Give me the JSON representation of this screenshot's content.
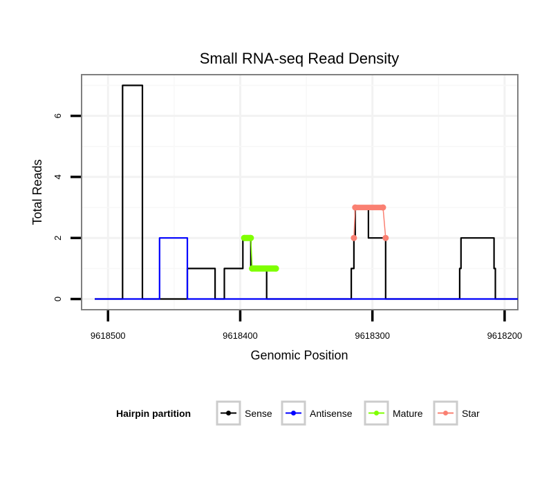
{
  "chart_data": {
    "type": "line",
    "title": "Small RNA-seq Read Density",
    "xlabel": "Genomic Position",
    "ylabel": "Total Reads",
    "xlim": [
      9618520,
      9618190
    ],
    "ylim": [
      -0.35,
      7.35
    ],
    "x_reversed": true,
    "x_ticks": [
      9618500,
      9618400,
      9618300,
      9618200
    ],
    "y_ticks": [
      0,
      2,
      4,
      6
    ],
    "legend": {
      "title": "Hairpin partition",
      "position": "bottom",
      "entries": [
        {
          "name": "Sense",
          "color": "#000000"
        },
        {
          "name": "Antisense",
          "color": "#0000ff"
        },
        {
          "name": "Mature",
          "color": "#7fff00"
        },
        {
          "name": "Star",
          "color": "#fa8072"
        }
      ]
    },
    "series": [
      {
        "name": "Sense",
        "color": "#000000",
        "x": [
          9618510,
          9618489,
          9618489,
          9618474,
          9618474,
          9618440,
          9618440,
          9618419,
          9618419,
          9618412,
          9618412,
          9618398,
          9618398,
          9618392,
          9618392,
          9618380,
          9618380,
          9618370,
          9618370,
          9618355,
          9618355,
          9618337,
          9618337,
          9618316,
          9618316,
          9618314,
          9618314,
          9618313,
          9618313,
          9618303,
          9618303,
          9618290,
          9618290,
          9618288,
          9618288,
          9618286,
          9618286,
          9618276,
          9618276,
          9618234,
          9618234,
          9618233,
          9618233,
          9618225,
          9618225,
          9618208,
          9618208,
          9618207,
          9618207,
          9618205,
          9618205,
          9618190
        ],
        "y": [
          0,
          0,
          7,
          7,
          0,
          0,
          1,
          1,
          0,
          0,
          1,
          1,
          2,
          2,
          1,
          1,
          0,
          0,
          0,
          0,
          0,
          0,
          0,
          0,
          1,
          1,
          2,
          2,
          3,
          3,
          2,
          2,
          0,
          0,
          0,
          0,
          0,
          0,
          0,
          0,
          1,
          1,
          2,
          2,
          2,
          2,
          1,
          1,
          0,
          0,
          0,
          0
        ]
      },
      {
        "name": "Antisense",
        "color": "#0000ff",
        "x": [
          9618510,
          9618461,
          9618461,
          9618440,
          9618440,
          9618190
        ],
        "y": [
          0,
          0,
          2,
          2,
          0,
          0
        ]
      },
      {
        "name": "Mature",
        "color": "#7fff00",
        "x": [
          9618397,
          9618392,
          9618391,
          9618373
        ],
        "y": [
          2,
          2,
          1,
          1
        ]
      },
      {
        "name": "Star",
        "color": "#fa8072",
        "x": [
          9618314,
          9618313,
          9618292,
          9618290
        ],
        "y": [
          2,
          3,
          3,
          2
        ]
      }
    ]
  }
}
